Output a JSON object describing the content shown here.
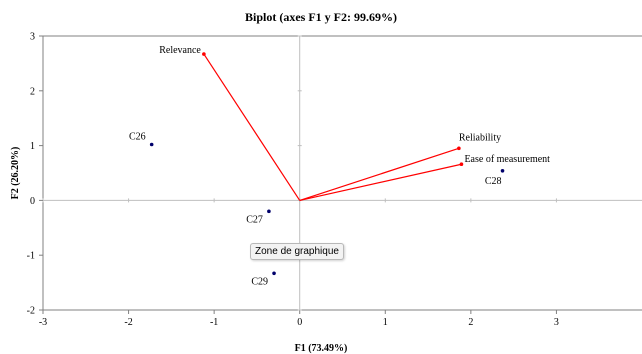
{
  "chart_data": {
    "type": "scatter",
    "title": "Biplot (axes F1 y F2: 99.69%)",
    "xlabel": "F1 (73.49%)",
    "ylabel": "F2 (26.20%)",
    "xlim": [
      -3,
      4
    ],
    "ylim": [
      -2,
      3
    ],
    "xticks": [
      -3,
      -2,
      -1,
      0,
      1,
      2,
      3
    ],
    "yticks": [
      -2,
      -1,
      0,
      1,
      2,
      3
    ],
    "observations": [
      {
        "label": "C26",
        "x": -1.73,
        "y": 1.02
      },
      {
        "label": "C27",
        "x": -0.36,
        "y": -0.2
      },
      {
        "label": "C28",
        "x": 2.37,
        "y": 0.54
      },
      {
        "label": "C29",
        "x": -0.3,
        "y": -1.33
      }
    ],
    "variables": [
      {
        "label": "Relevance",
        "x": -1.12,
        "y": 2.67
      },
      {
        "label": "Reliability",
        "x": 1.86,
        "y": 0.95
      },
      {
        "label": "Ease of measurement",
        "x": 1.89,
        "y": 0.66
      }
    ],
    "colors": {
      "observations": "#00006b",
      "variables": "#ff0000",
      "axes": "#bfbfbf",
      "frame": "#808080"
    }
  },
  "tooltip": {
    "text": "Zone de graphique"
  }
}
